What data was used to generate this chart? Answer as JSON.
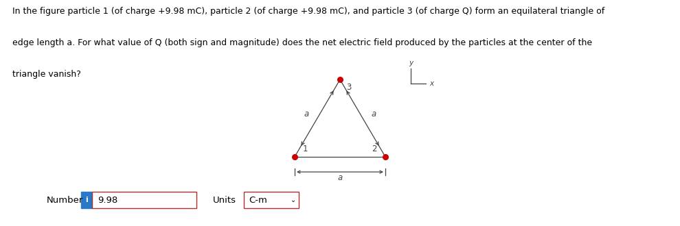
{
  "text_line1": "In the figure particle 1 (of charge +9.98 mC), particle 2 (of charge +9.98 mC), and particle 3 (of charge Q) form an equilateral triangle of",
  "text_line2": "edge length a. For what value of Q (both sign and magnitude) does the net electric field produced by the particles at the center of the",
  "text_line3": "triangle vanish?",
  "number_label": "Number",
  "number_value": "9.98",
  "units_label": "Units",
  "units_value": "C-m",
  "info_bg": "#2979c8",
  "box_border": "#b03030",
  "bg_color": "#ffffff",
  "triangle_color": "#444444",
  "dot_color": "#cc0000",
  "label_color": "#444444",
  "p1_label": "1",
  "p2_label": "2",
  "p3_label": "3",
  "edge_label": "a",
  "axis_x_label": "x",
  "axis_y_label": "y",
  "text_fontsize": 9.0,
  "tri_lw": 0.9
}
